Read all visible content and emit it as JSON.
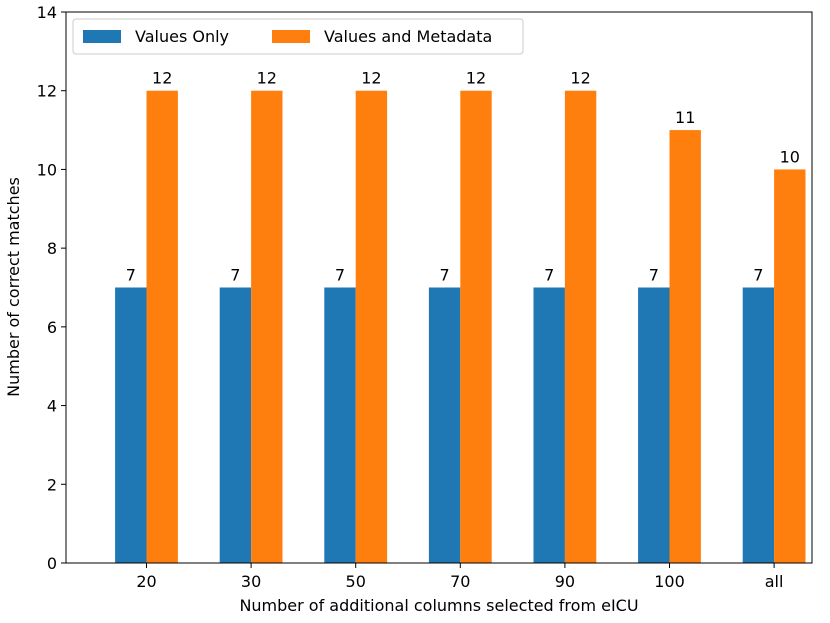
{
  "chart_data": {
    "type": "bar",
    "categories": [
      "20",
      "30",
      "50",
      "70",
      "90",
      "100",
      "all"
    ],
    "series": [
      {
        "name": "Values Only",
        "values": [
          7,
          7,
          7,
          7,
          7,
          7,
          7
        ],
        "color": "#1f77b4"
      },
      {
        "name": "Values and Metadata",
        "values": [
          12,
          12,
          12,
          12,
          12,
          11,
          10
        ],
        "color": "#ff7f0e"
      }
    ],
    "title": "",
    "xlabel": "Number of additional columns selected from eICU",
    "ylabel": "Number of correct matches",
    "ylim": [
      0,
      14
    ],
    "yticks": [
      0,
      2,
      4,
      6,
      8,
      10,
      12,
      14
    ],
    "legend_position": "top-left",
    "grid": false,
    "data_labels": true
  }
}
